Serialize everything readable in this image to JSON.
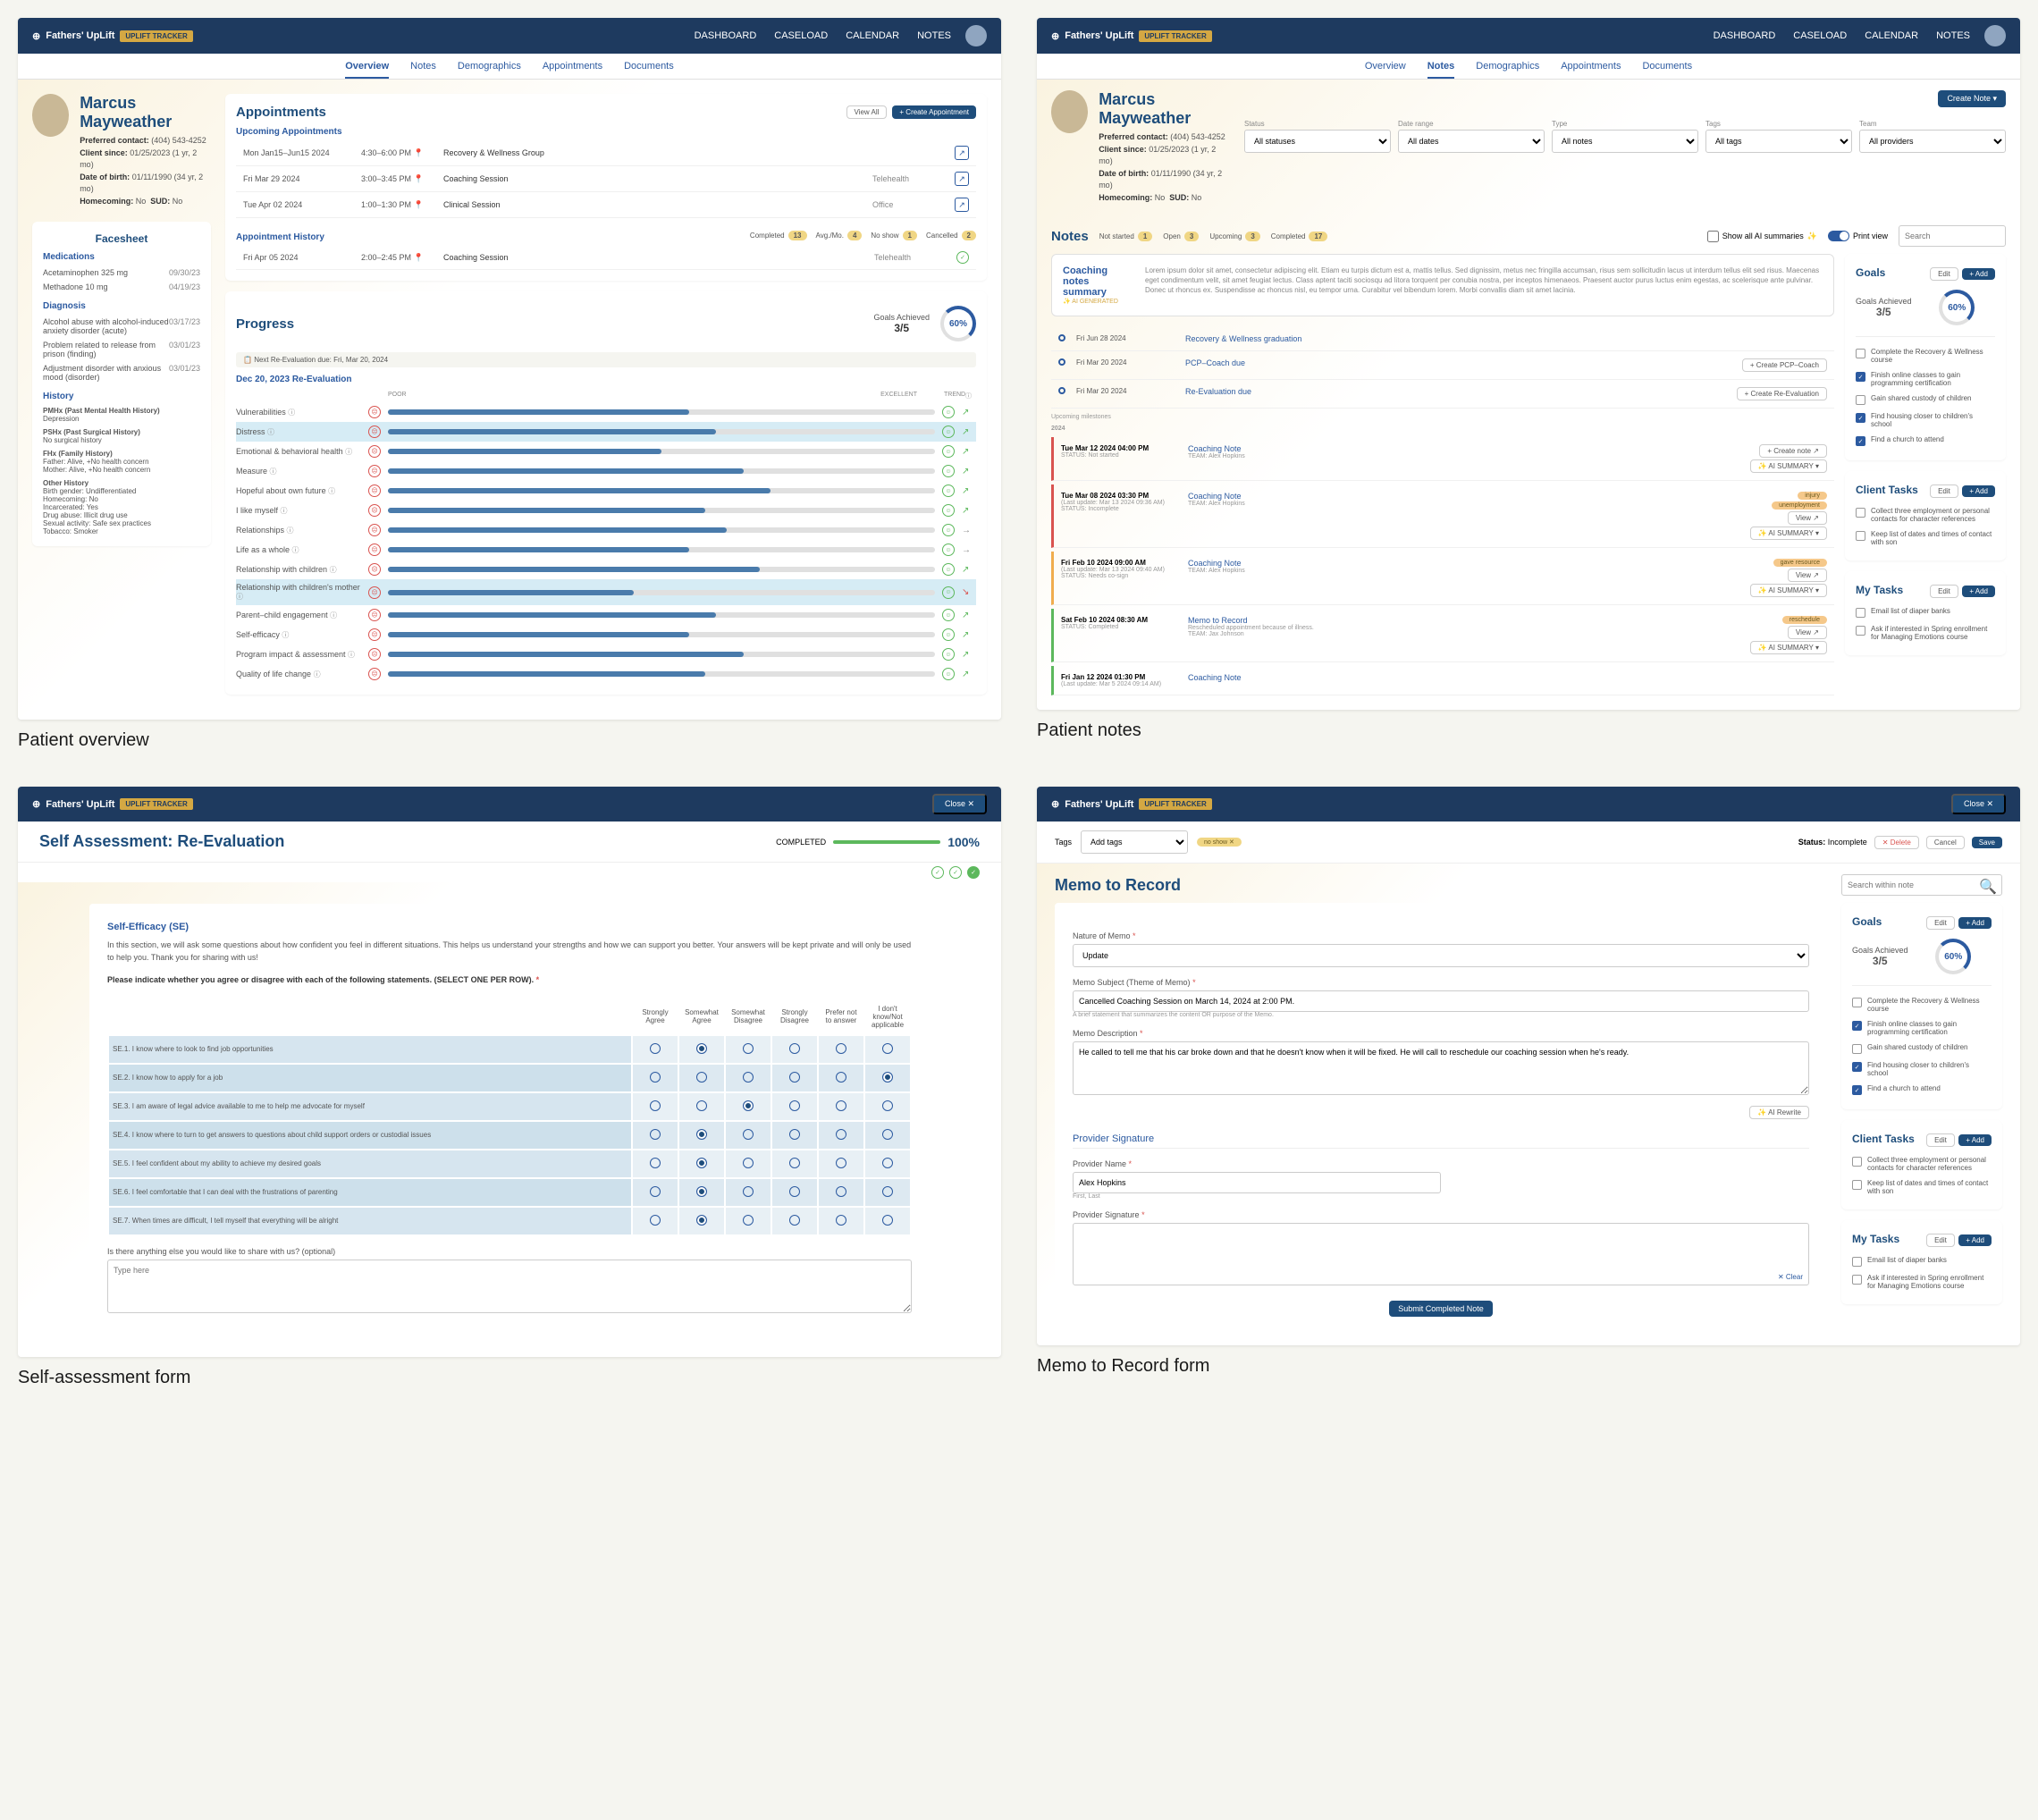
{
  "brand": {
    "name": "Fathers' UpLift",
    "badge": "UPLIFT TRACKER"
  },
  "nav": {
    "dashboard": "DASHBOARD",
    "caseload": "CASELOAD",
    "calendar": "CALENDAR",
    "notes": "NOTES"
  },
  "patient": {
    "name": "Marcus Mayweather",
    "contact_label": "Preferred contact:",
    "contact": "(404) 543-4252",
    "since_label": "Client since:",
    "since": "01/25/2023 (1 yr, 2 mo)",
    "dob_label": "Date of birth:",
    "dob": "01/11/1990 (34 yr, 2 mo)",
    "home_label": "Homecoming:",
    "home": "No",
    "sud_label": "SUD:",
    "sud": "No"
  },
  "tabs_overview": {
    "overview": "Overview",
    "notes": "Notes",
    "demographics": "Demographics",
    "appointments": "Appointments",
    "documents": "Documents"
  },
  "facesheet": {
    "title": "Facesheet",
    "medications": {
      "label": "Medications",
      "items": [
        {
          "name": "Acetaminophen 325 mg",
          "date": "09/30/23"
        },
        {
          "name": "Methadone 10 mg",
          "date": "04/19/23"
        }
      ]
    },
    "diagnosis": {
      "label": "Diagnosis",
      "items": [
        {
          "name": "Alcohol abuse with alcohol-induced anxiety disorder (acute)",
          "date": "03/17/23"
        },
        {
          "name": "Problem related to release from prison (finding)",
          "date": "03/01/23"
        },
        {
          "name": "Adjustment disorder with anxious mood (disorder)",
          "date": "03/01/23"
        }
      ]
    },
    "history": {
      "label": "History",
      "pmhx": {
        "label": "PMHx (Past Mental Health History)",
        "text": "Depression"
      },
      "pshx": {
        "label": "PSHx (Past Surgical History)",
        "text": "No surgical history"
      },
      "fhx": {
        "label": "FHx (Family History)",
        "text": "Father: Alive, +No health concern\nMother: Alive, +No health concern"
      },
      "other": {
        "label": "Other History",
        "text": "Birth gender: Undifferentiated\nHomecoming: No\nIncarcerated: Yes\nDrug abuse: Illicit drug use\nSexual activity: Safe sex practices\nTobacco: Smoker"
      }
    }
  },
  "appointments": {
    "title": "Appointments",
    "view_all": "View All",
    "create": "+ Create Appointment",
    "upcoming_label": "Upcoming Appointments",
    "upcoming": [
      {
        "date": "Mon Jan15–Jun15 2024",
        "time": "4:30–6:00 PM",
        "type": "Recovery & Wellness Group",
        "loc": ""
      },
      {
        "date": "Fri Mar 29 2024",
        "time": "3:00–3:45 PM",
        "type": "Coaching Session",
        "loc": "Telehealth"
      },
      {
        "date": "Tue Apr 02 2024",
        "time": "1:00–1:30 PM",
        "type": "Clinical Session",
        "loc": "Office"
      }
    ],
    "history_label": "Appointment History",
    "stats": {
      "completed_label": "Completed",
      "completed": "13",
      "avgmo_label": "Avg./Mo.",
      "avgmo": "4",
      "noshow_label": "No show",
      "noshow": "1",
      "cancelled_label": "Cancelled",
      "cancelled": "2"
    },
    "history": [
      {
        "date": "Fri Apr 05 2024",
        "time": "2:00–2:45 PM",
        "type": "Coaching Session",
        "loc": "Telehealth"
      }
    ]
  },
  "progress": {
    "title": "Progress",
    "goals_label": "Goals Achieved",
    "goals_frac": "3/5",
    "goals_pct": "60%",
    "next_eval": "Next Re-Evaluation due: Fri, Mar 20, 2024",
    "eval_date": "Dec 20, 2023 Re-Evaluation",
    "col_poor": "POOR",
    "col_excellent": "EXCELLENT",
    "col_trend": "TREND",
    "rows": [
      {
        "label": "Vulnerabilities",
        "pct": 55,
        "trend": "up"
      },
      {
        "label": "Distress",
        "pct": 60,
        "trend": "up",
        "hl": true
      },
      {
        "label": "Emotional & behavioral health",
        "pct": 50,
        "trend": "up"
      },
      {
        "label": "Measure",
        "pct": 65,
        "trend": "up"
      },
      {
        "label": "Hopeful about own future",
        "pct": 70,
        "trend": "up"
      },
      {
        "label": "I like myself",
        "pct": 58,
        "trend": "up"
      },
      {
        "label": "Relationships",
        "pct": 62,
        "trend": "flat"
      },
      {
        "label": "Life as a whole",
        "pct": 55,
        "trend": "flat"
      },
      {
        "label": "Relationship with children",
        "pct": 68,
        "trend": "up"
      },
      {
        "label": "Relationship with children's mother",
        "pct": 45,
        "trend": "down",
        "hl": true
      },
      {
        "label": "Parent–child engagement",
        "pct": 60,
        "trend": "up"
      },
      {
        "label": "Self-efficacy",
        "pct": 55,
        "trend": "up"
      },
      {
        "label": "Program impact & assessment",
        "pct": 65,
        "trend": "up"
      },
      {
        "label": "Quality of life change",
        "pct": 58,
        "trend": "up"
      }
    ]
  },
  "notes_page": {
    "title": "Notes",
    "create": "Create Note",
    "filters": {
      "status": "Status",
      "status_v": "All statuses",
      "date": "Date range",
      "date_v": "All dates",
      "type": "Type",
      "type_v": "All notes",
      "tags": "Tags",
      "tags_v": "All tags",
      "team": "Team",
      "team_v": "All providers"
    },
    "stat_notstarted": "Not started",
    "stat_notstarted_n": "1",
    "stat_open": "Open",
    "stat_open_n": "3",
    "stat_upcoming": "Upcoming",
    "stat_upcoming_n": "3",
    "stat_completed": "Completed",
    "stat_completed_n": "17",
    "show_summaries": "Show all AI summaries",
    "print": "Print view",
    "search": "Search",
    "summary_label": "Coaching notes summary",
    "ai_badge": "AI GENERATED",
    "summary_text": "Lorem ipsum dolor sit amet, consectetur adipiscing elit. Etiam eu turpis dictum est a, mattis tellus. Sed dignissim, metus nec fringilla accumsan, risus sem sollicitudin lacus ut interdum tellus elit sed risus. Maecenas eget condimentum velit, sit amet feugiat lectus. Class aptent taciti sociosqu ad litora torquent per conubia nostra, per inceptos himenaeos. Praesent auctor purus luctus enim egestas, ac scelerisque ante pulvinar. Donec ut rhoncus ex. Suspendisse ac rhoncus nisl, eu tempor urna. Curabitur vel bibendum lorem. Morbi convallis diam sit amet lacinia.",
    "milestones": [
      {
        "date": "Fri Jun 28 2024",
        "title": "Recovery & Wellness graduation"
      },
      {
        "date": "Fri Mar 20 2024",
        "title": "PCP–Coach due",
        "action": "+ Create PCP–Coach"
      },
      {
        "date": "Fri Mar 20 2024",
        "title": "Re-Evaluation due",
        "action": "+ Create Re-Evaluation"
      }
    ],
    "upcoming_label": "Upcoming milestones",
    "year": "2024",
    "entries": [
      {
        "date": "Tue Mar 12 2024 04:00 PM",
        "status": "STATUS: Not started",
        "title": "Coaching Note",
        "team": "TEAM: Alex Hopkins",
        "color": "red",
        "btn": "+ Create note"
      },
      {
        "date": "Tue Mar 08 2024 03:30 PM",
        "update": "(Last update: Mar 13 2024 09:36 AM)",
        "status": "STATUS: Incomplete",
        "title": "Coaching Note",
        "team": "TEAM: Alex Hopkins",
        "color": "red",
        "tags": [
          "injury",
          "unemployment"
        ],
        "btn": "View"
      },
      {
        "date": "Fri Feb 10 2024 09:00 AM",
        "update": "(Last update: Mar 13 2024 09:40 AM)",
        "status": "STATUS: Needs co-sign",
        "title": "Coaching Note",
        "team": "TEAM: Alex Hopkins",
        "color": "yellow",
        "tags": [
          "gave resource"
        ],
        "btn": "View"
      },
      {
        "date": "Sat Feb 10 2024 08:30 AM",
        "status": "STATUS: Completed",
        "title": "Memo to Record",
        "sub": "Rescheduled appointment because of illness.",
        "team": "TEAM: Jax Johnson",
        "color": "green",
        "tags": [
          "reschedule"
        ],
        "btn": "View"
      },
      {
        "date": "Fri Jan 12 2024 01:30 PM",
        "update": "(Last update: Mar 5 2024 09:14 AM)",
        "title": "Coaching Note",
        "color": "green"
      }
    ],
    "ai_summary_btn": "AI SUMMARY"
  },
  "goals_sidebar": {
    "title": "Goals",
    "edit": "Edit",
    "add": "+ Add",
    "achieved_label": "Goals Achieved",
    "frac": "3/5",
    "pct": "60%",
    "items": [
      {
        "text": "Complete the Recovery & Wellness course",
        "checked": false
      },
      {
        "text": "Finish online classes to gain programming certification",
        "checked": true
      },
      {
        "text": "Gain shared custody of children",
        "checked": false
      },
      {
        "text": "Find housing closer to children's school",
        "checked": true
      },
      {
        "text": "Find a church to attend",
        "checked": true
      }
    ],
    "client_tasks": {
      "title": "Client Tasks",
      "items": [
        {
          "text": "Collect three employment or personal contacts for character references",
          "checked": false
        },
        {
          "text": "Keep list of dates and times of contact with son",
          "checked": false
        }
      ]
    },
    "my_tasks": {
      "title": "My Tasks",
      "items": [
        {
          "text": "Email list of diaper banks",
          "checked": false
        },
        {
          "text": "Ask if interested in Spring enrollment for Managing Emotions course",
          "checked": false
        }
      ]
    }
  },
  "self_assessment": {
    "title": "Self Assessment: Re-Evaluation",
    "close": "Close ✕",
    "completed_label": "COMPLETED",
    "pct": "100%",
    "section": "Self-Efficacy (SE)",
    "intro": "In this section, we will ask some questions about how confident you feel in different situations. This helps us understand your strengths and how we can support you better. Your answers will be kept private and will only be used to help you. Thank you for sharing with us!",
    "instruction": "Please indicate whether you agree or disagree with each of the following statements. (SELECT ONE PER ROW).",
    "cols": [
      "Strongly Agree",
      "Somewhat Agree",
      "Somewhat Disagree",
      "Strongly Disagree",
      "Prefer not to answer",
      "I don't know/Not applicable"
    ],
    "rows": [
      {
        "q": "SE.1. I know where to look to find job opportunities",
        "sel": 1
      },
      {
        "q": "SE.2. I know how to apply for a job",
        "sel": 5
      },
      {
        "q": "SE.3. I am aware of legal advice available to me to help me advocate for myself",
        "sel": 2
      },
      {
        "q": "SE.4. I know where to turn to get answers to questions about child support orders or custodial issues",
        "sel": 1
      },
      {
        "q": "SE.5. I feel confident about my ability to achieve my desired goals",
        "sel": 1
      },
      {
        "q": "SE.6. I feel comfortable that I can deal with the frustrations of parenting",
        "sel": 1
      },
      {
        "q": "SE.7. When times are difficult, I tell myself that everything will be alright",
        "sel": 1
      }
    ],
    "optional_label": "Is there anything else you would like to share with us? (optional)",
    "placeholder": "Type here"
  },
  "memo": {
    "title": "Memo to Record",
    "close": "Close ✕",
    "tags_label": "Tags",
    "tags_placeholder": "Add tags",
    "noshow": "no show ✕",
    "status_label": "Status:",
    "status": "Incomplete",
    "delete": "✕ Delete",
    "cancel": "Cancel",
    "save": "Save",
    "search": "Search within note",
    "nature_label": "Nature of Memo",
    "nature_value": "Update",
    "subject_label": "Memo Subject (Theme of Memo)",
    "subject_value": "Cancelled Coaching Session on March 14, 2024 at 2:00 PM.",
    "subject_hint": "A brief statement that summarizes the content OR purpose of the Memo.",
    "desc_label": "Memo Description",
    "desc_value": "He called to tell me that his car broke down and that he doesn't know when it will be fixed. He will call to reschedule our coaching session when he's ready.",
    "ai_rewrite": "✨ AI Rewrite",
    "sig_section": "Provider Signature",
    "name_label": "Provider Name",
    "name_value": "Alex Hopkins",
    "name_hint": "First, Last",
    "sig_label": "Provider Signature",
    "clear": "✕ Clear",
    "submit": "Submit Completed Note"
  },
  "goals_memo": {
    "items": [
      {
        "text": "Complete the Recovery & Wellness course",
        "checked": false
      },
      {
        "text": "Finish online classes to gain programming certification",
        "checked": true
      },
      {
        "text": "Gain shared custody of children",
        "checked": false
      },
      {
        "text": "Find housing closer to children's school",
        "checked": true
      },
      {
        "text": "Find a church to attend",
        "checked": true
      }
    ]
  },
  "labels": {
    "overview": "Patient overview",
    "notes": "Patient notes",
    "self": "Self-assessment form",
    "memo": "Memo to Record form"
  }
}
